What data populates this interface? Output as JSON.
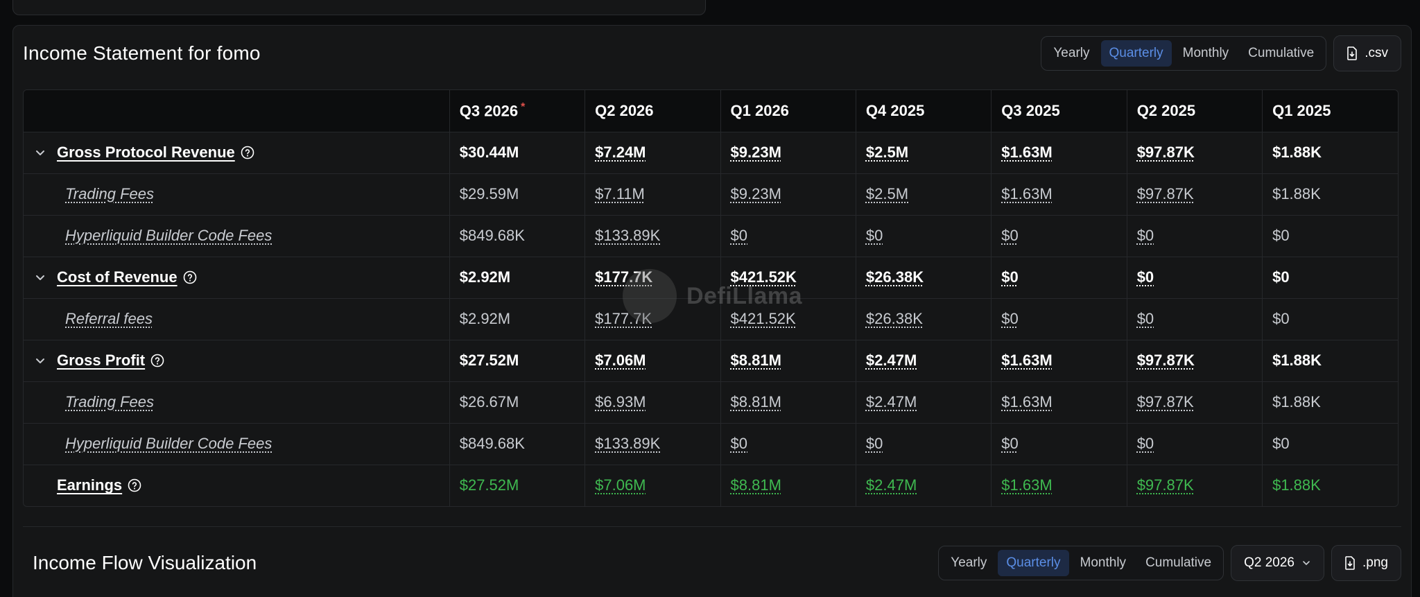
{
  "income_statement": {
    "title": "Income Statement for fomo",
    "period_toggle": [
      "Yearly",
      "Quarterly",
      "Monthly",
      "Cumulative"
    ],
    "active_period": "Quarterly",
    "csv_button": ".csv",
    "columns": [
      "Q3 2026",
      "Q2 2026",
      "Q1 2026",
      "Q4 2025",
      "Q3 2025",
      "Q2 2025",
      "Q1 2025"
    ],
    "current_marker": "*",
    "rows": [
      {
        "label": "Gross Protocol Revenue",
        "values": [
          "$30.44M",
          "$7.24M",
          "$9.23M",
          "$2.5M",
          "$1.63M",
          "$97.87K",
          "$1.88K"
        ]
      },
      {
        "label": "Trading Fees",
        "values": [
          "$29.59M",
          "$7.11M",
          "$9.23M",
          "$2.5M",
          "$1.63M",
          "$97.87K",
          "$1.88K"
        ]
      },
      {
        "label": "Hyperliquid Builder Code Fees",
        "values": [
          "$849.68K",
          "$133.89K",
          "$0",
          "$0",
          "$0",
          "$0",
          "$0"
        ]
      },
      {
        "label": "Cost of Revenue",
        "values": [
          "$2.92M",
          "$177.7K",
          "$421.52K",
          "$26.38K",
          "$0",
          "$0",
          "$0"
        ]
      },
      {
        "label": "Referral fees",
        "values": [
          "$2.92M",
          "$177.7K",
          "$421.52K",
          "$26.38K",
          "$0",
          "$0",
          "$0"
        ]
      },
      {
        "label": "Gross Profit",
        "values": [
          "$27.52M",
          "$7.06M",
          "$8.81M",
          "$2.47M",
          "$1.63M",
          "$97.87K",
          "$1.88K"
        ]
      },
      {
        "label": "Trading Fees",
        "values": [
          "$26.67M",
          "$6.93M",
          "$8.81M",
          "$2.47M",
          "$1.63M",
          "$97.87K",
          "$1.88K"
        ]
      },
      {
        "label": "Hyperliquid Builder Code Fees",
        "values": [
          "$849.68K",
          "$133.89K",
          "$0",
          "$0",
          "$0",
          "$0",
          "$0"
        ]
      },
      {
        "label": "Earnings",
        "values": [
          "$27.52M",
          "$7.06M",
          "$8.81M",
          "$2.47M",
          "$1.63M",
          "$97.87K",
          "$1.88K"
        ]
      }
    ]
  },
  "income_flow": {
    "title": "Income Flow Visualization",
    "period_toggle": [
      "Yearly",
      "Quarterly",
      "Monthly",
      "Cumulative"
    ],
    "active_period": "Quarterly",
    "quarter_select": "Q2 2026",
    "png_button": ".png"
  },
  "watermark": "DefiLlama",
  "colors": {
    "background": "#0b0c0d",
    "panel": "#151617",
    "accent": "#5b8ee6",
    "accent_bg": "#1d2a44",
    "earnings_green": "#3fb950",
    "current_star": "#e0504a"
  },
  "icons": {
    "expand": "chevron-down-icon",
    "help": "help-circle-icon",
    "download": "file-download-icon",
    "select": "chevron-down-icon"
  }
}
